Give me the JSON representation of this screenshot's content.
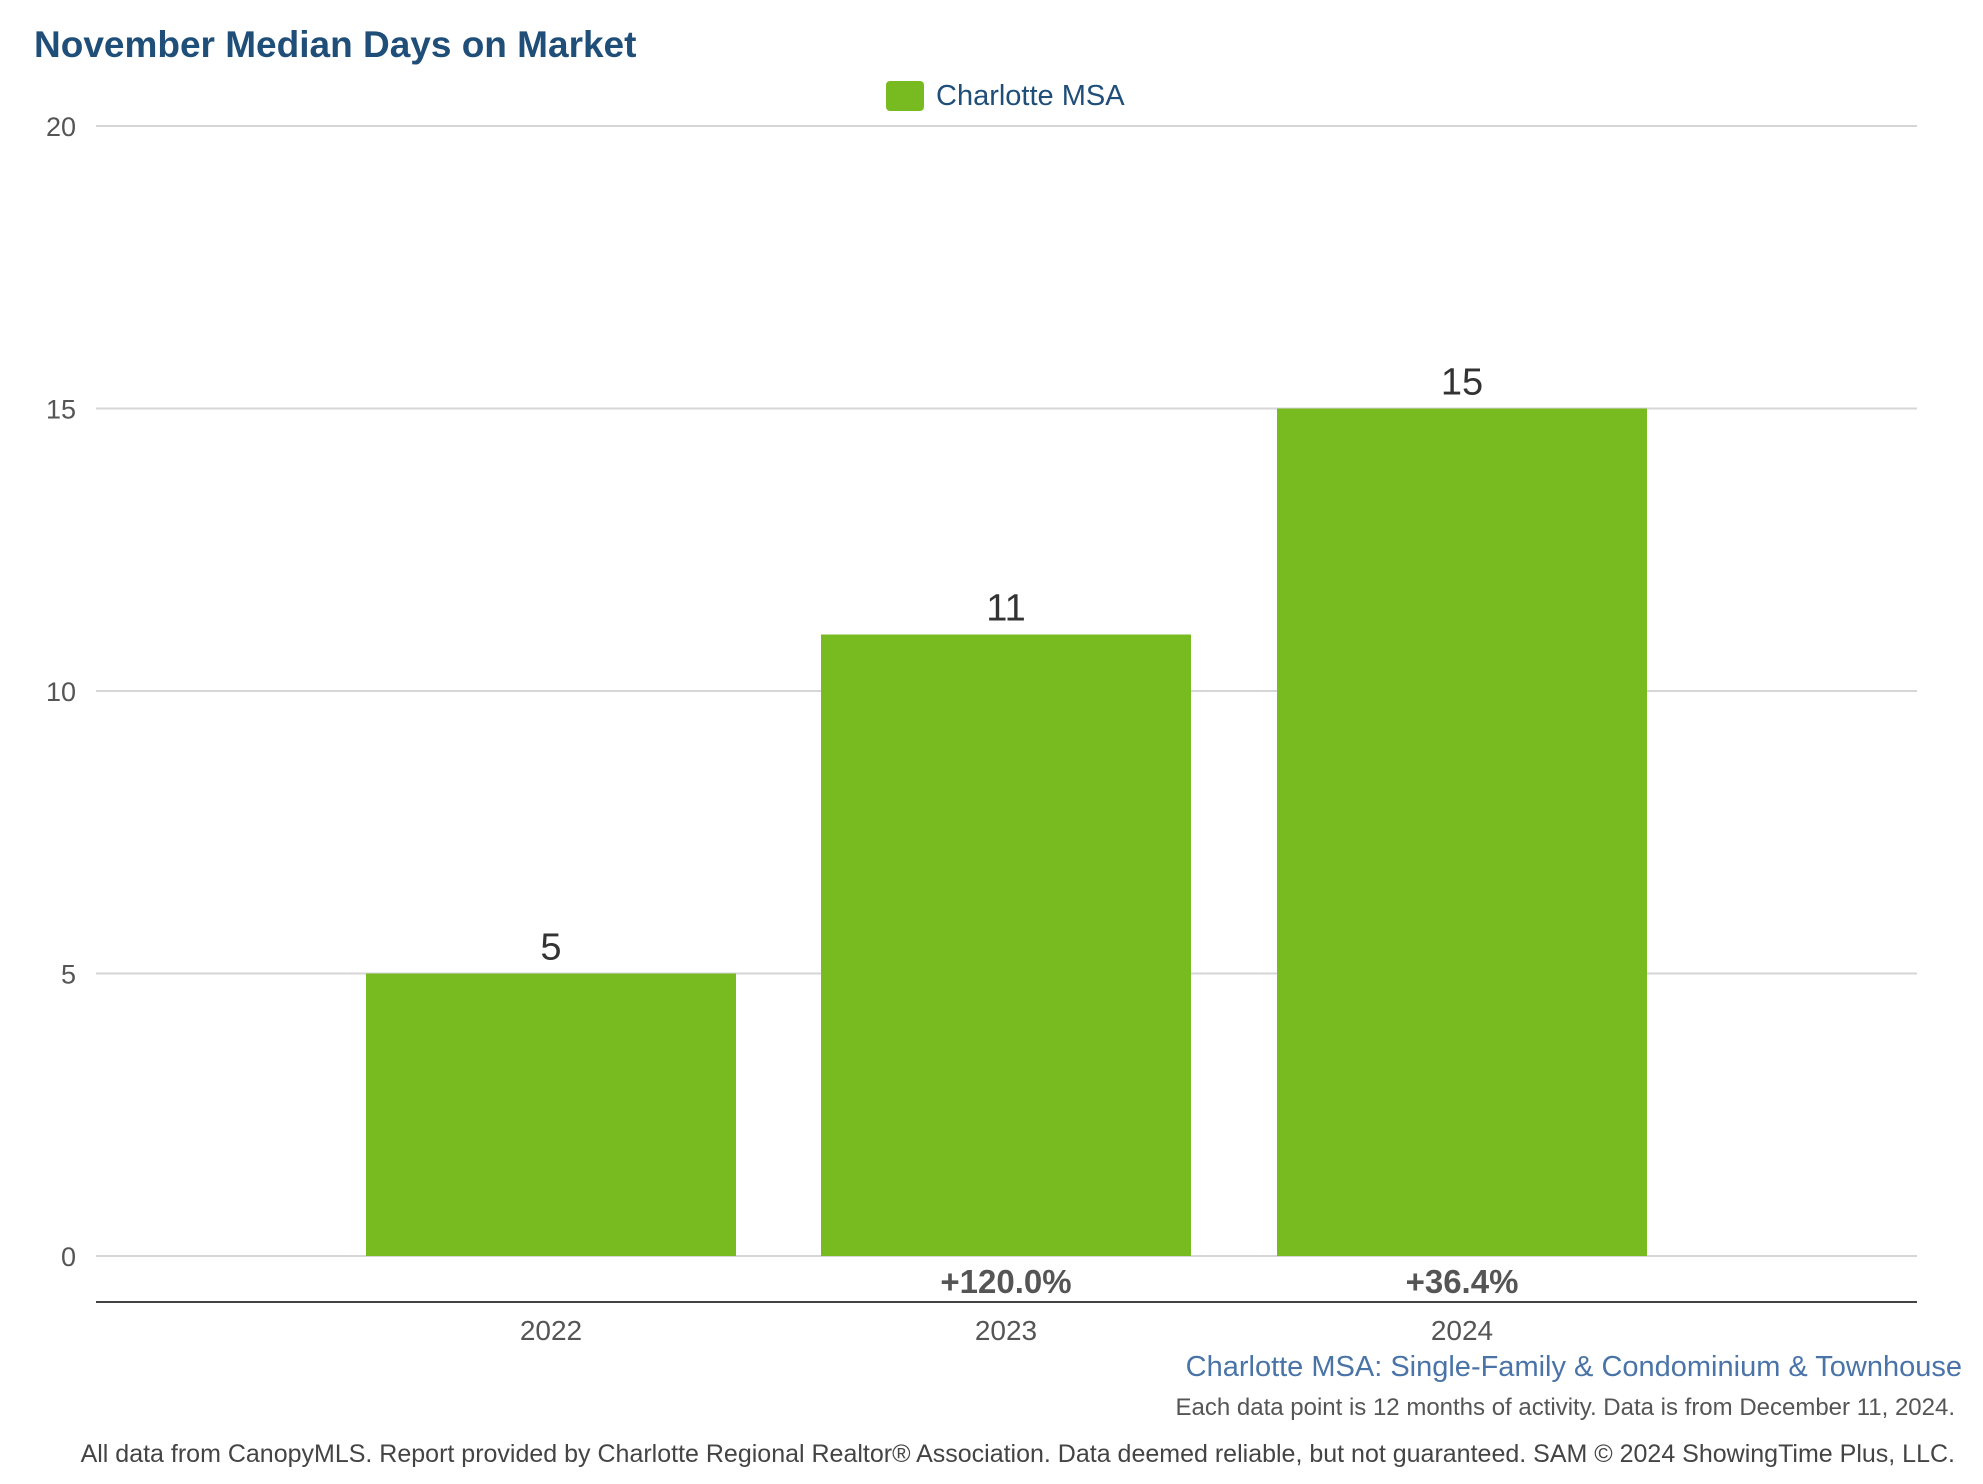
{
  "chart_data": {
    "type": "bar",
    "title": "November Median Days on Market",
    "categories": [
      "2022",
      "2023",
      "2024"
    ],
    "series": [
      {
        "name": "Charlotte MSA",
        "values": [
          5,
          11,
          15
        ],
        "color": "#78bb21"
      }
    ],
    "data_labels": [
      "5",
      "11",
      "15"
    ],
    "change_labels": [
      "",
      "+120.0%",
      "+36.4%"
    ],
    "ylim": [
      0,
      20
    ],
    "yticks": [
      0,
      5,
      10,
      15,
      20
    ],
    "grid": true,
    "legend_position": "top-center",
    "xlabel": "",
    "ylabel": ""
  },
  "subtitle": "Charlotte MSA: Single-Family & Condominium & Townhouse",
  "note": "Each data point is 12 months of activity. Data is from December 11, 2024.",
  "footer": "All data from CanopyMLS. Report provided by Charlotte Regional Realtor® Association. Data deemed reliable, but not guaranteed. SAM © 2024 ShowingTime Plus, LLC."
}
